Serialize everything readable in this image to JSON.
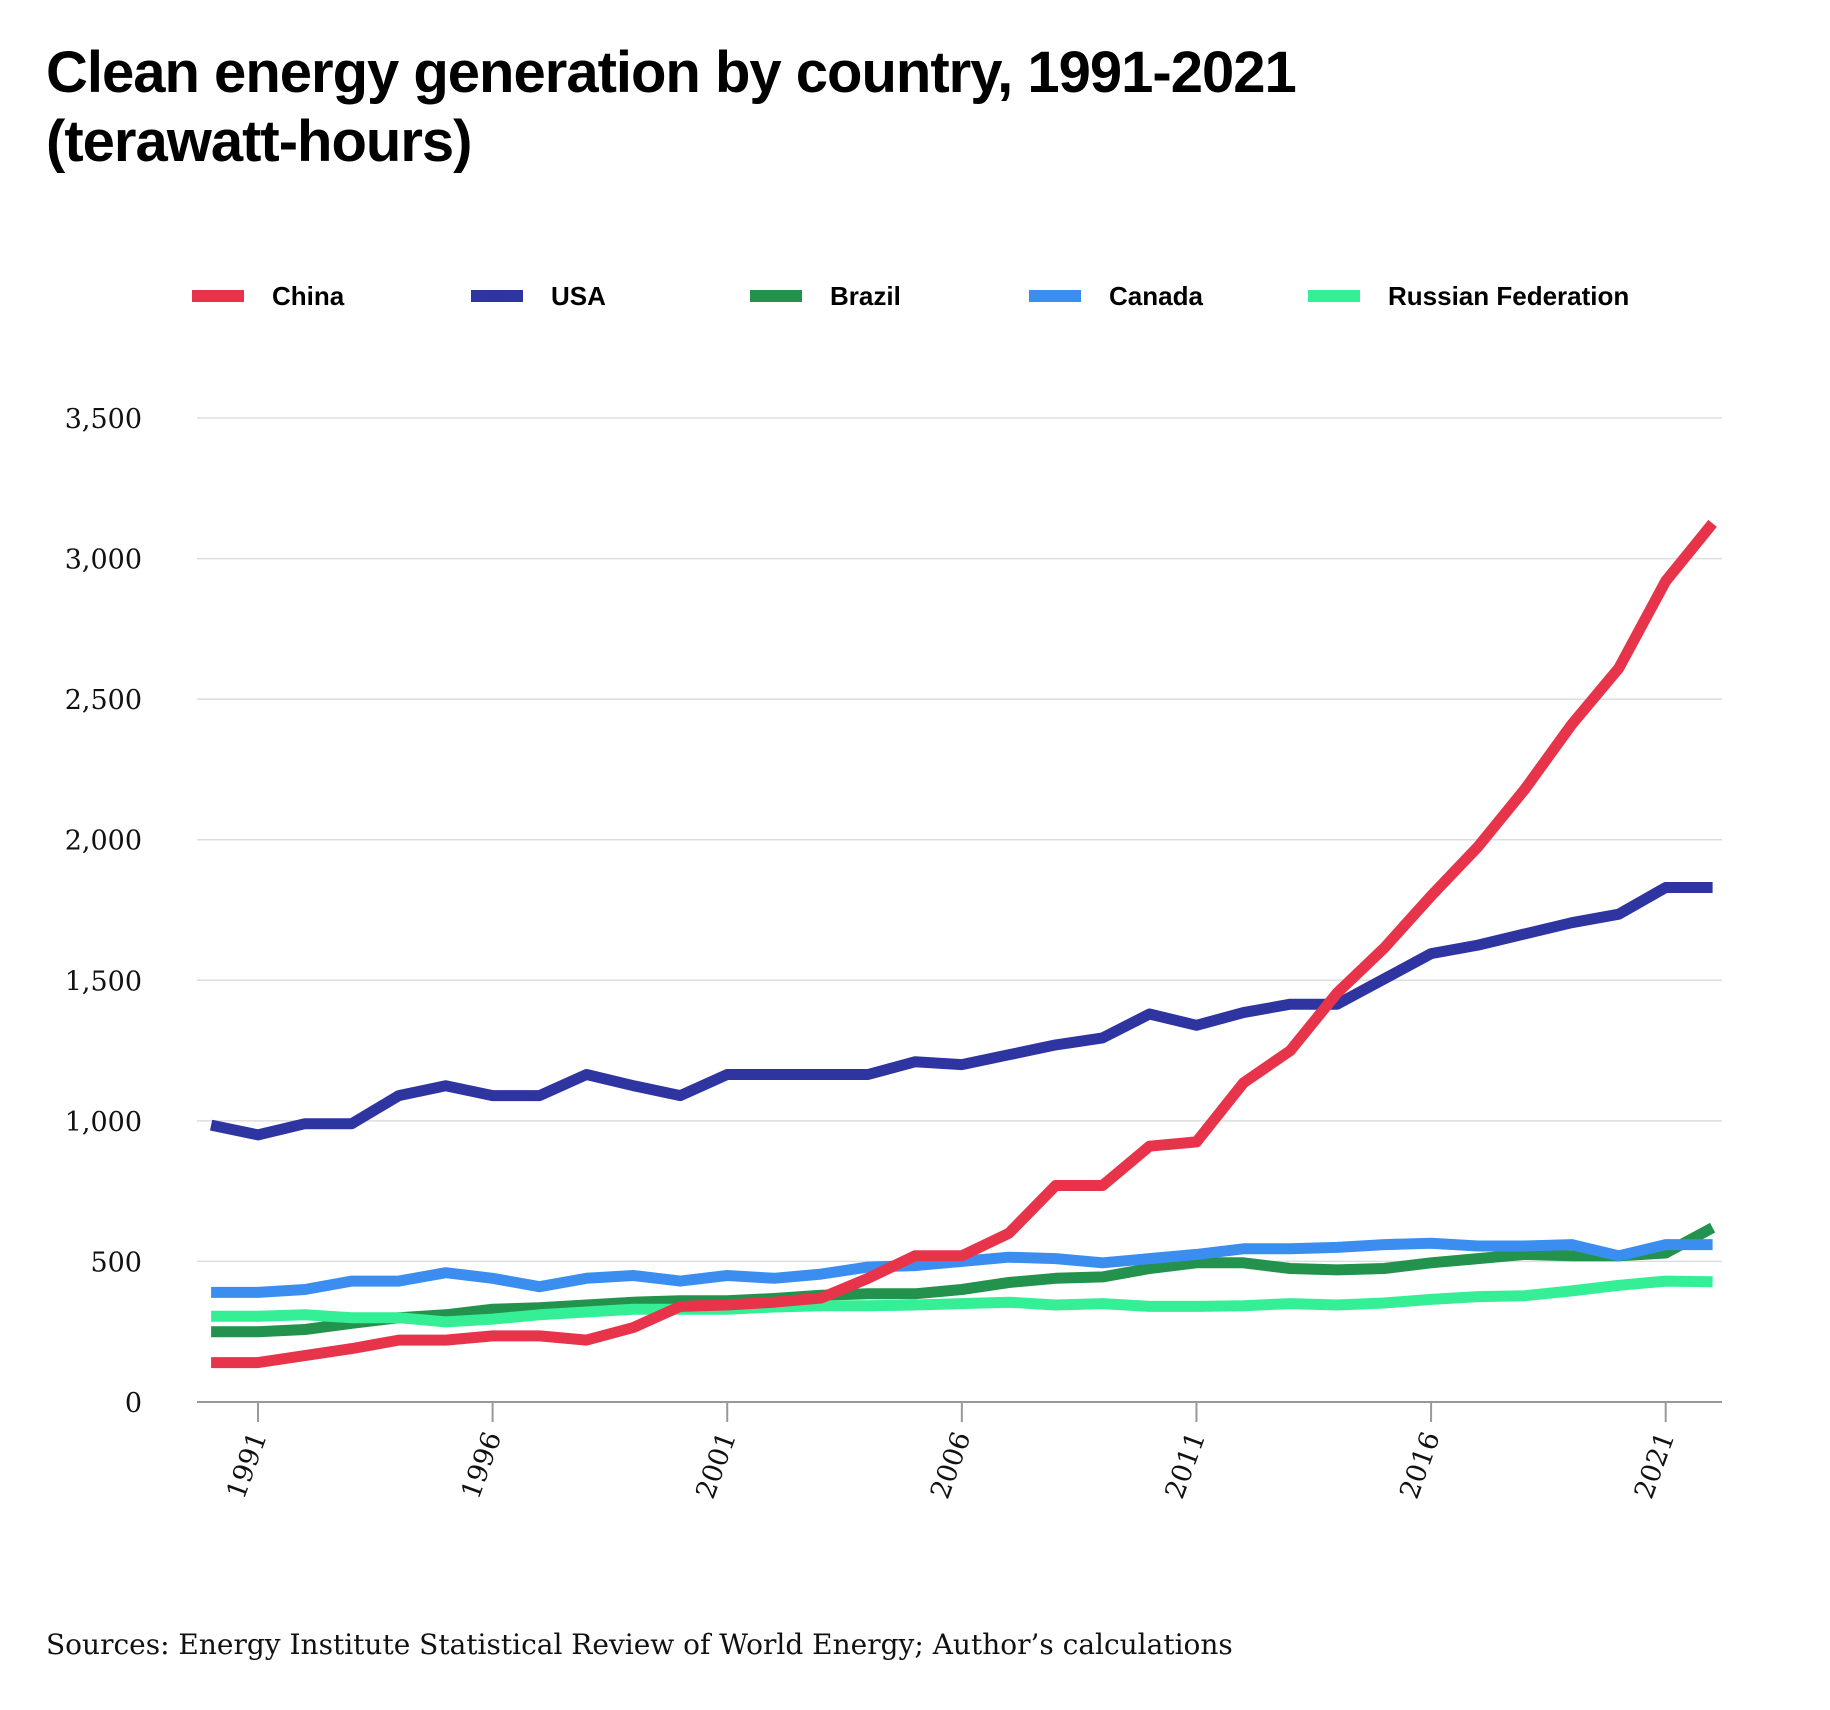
{
  "title_line1": "Clean energy generation by country, 1991-2021",
  "title_line2": "(terawatt-hours)",
  "source": "Sources: Energy Institute Statistical Review of World Energy; Author’s calculations",
  "chart_data": {
    "type": "line",
    "title": "Clean energy generation by country, 1991-2021 (terawatt-hours)",
    "xlabel": "",
    "ylabel": "",
    "xlim": [
      1989.7,
      2022.2
    ],
    "ylim": [
      0,
      3500
    ],
    "yticks": [
      0,
      500,
      1000,
      1500,
      2000,
      2500,
      3000,
      3500
    ],
    "ytick_labels": [
      "0",
      "500",
      "1,000",
      "1,500",
      "2,000",
      "2,500",
      "3,000",
      "3,500"
    ],
    "xticks": [
      1991,
      1996,
      2001,
      2006,
      2011,
      2016,
      2021
    ],
    "xtick_labels": [
      "1991",
      "1996",
      "2001",
      "2006",
      "2011",
      "2016",
      "2021"
    ],
    "grid": "horizontal",
    "legend_position": "top",
    "x": [
      1990,
      1991,
      1992,
      1993,
      1994,
      1995,
      1996,
      1997,
      1998,
      1999,
      2000,
      2001,
      2002,
      2003,
      2004,
      2005,
      2006,
      2007,
      2008,
      2009,
      2010,
      2011,
      2012,
      2013,
      2014,
      2015,
      2016,
      2017,
      2018,
      2019,
      2020,
      2021,
      2022
    ],
    "series": [
      {
        "name": "China",
        "color": "#e8344a",
        "values": [
          140,
          140,
          165,
          190,
          220,
          220,
          235,
          235,
          220,
          265,
          340,
          345,
          355,
          370,
          440,
          520,
          520,
          600,
          770,
          770,
          910,
          925,
          1135,
          1250,
          1455,
          1615,
          1800,
          1975,
          2180,
          2410,
          2610,
          2920,
          3125
        ]
      },
      {
        "name": "USA",
        "color": "#2e34a0",
        "values": [
          985,
          950,
          990,
          990,
          1090,
          1125,
          1090,
          1090,
          1165,
          1125,
          1090,
          1165,
          1165,
          1165,
          1165,
          1210,
          1200,
          1235,
          1270,
          1295,
          1380,
          1340,
          1385,
          1415,
          1415,
          1505,
          1595,
          1625,
          1665,
          1705,
          1735,
          1830,
          1830
        ]
      },
      {
        "name": "Brazil",
        "color": "#23924c",
        "values": [
          250,
          250,
          258,
          280,
          300,
          310,
          330,
          335,
          345,
          355,
          360,
          360,
          368,
          380,
          385,
          385,
          400,
          425,
          440,
          445,
          475,
          495,
          495,
          475,
          470,
          475,
          495,
          510,
          525,
          520,
          520,
          530,
          620
        ]
      },
      {
        "name": "Canada",
        "color": "#3b8ef0",
        "values": [
          390,
          390,
          400,
          430,
          430,
          460,
          440,
          410,
          440,
          450,
          430,
          450,
          440,
          455,
          480,
          485,
          500,
          515,
          510,
          495,
          510,
          525,
          545,
          545,
          550,
          560,
          565,
          555,
          555,
          560,
          520,
          560,
          560
        ]
      },
      {
        "name": "Russian Federation",
        "color": "#34ef95",
        "values": [
          305,
          305,
          310,
          300,
          300,
          285,
          295,
          310,
          320,
          330,
          330,
          330,
          338,
          342,
          342,
          345,
          350,
          355,
          345,
          350,
          340,
          340,
          342,
          350,
          345,
          352,
          365,
          375,
          378,
          395,
          415,
          430,
          428
        ]
      }
    ]
  }
}
